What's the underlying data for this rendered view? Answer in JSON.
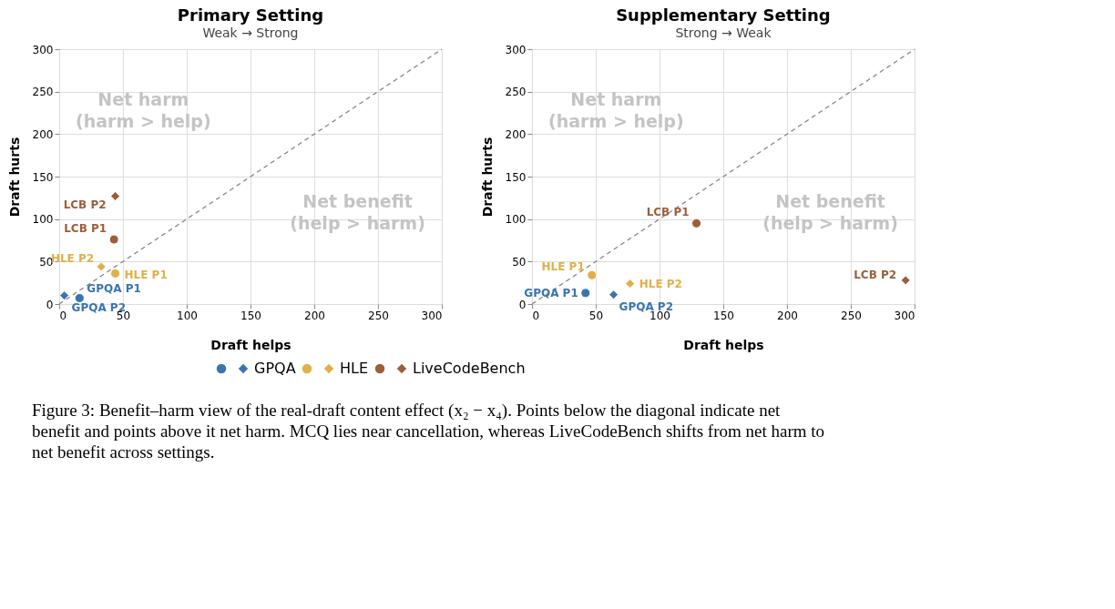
{
  "chart_data": [
    {
      "type": "scatter",
      "title": "Primary Setting",
      "subtitle": "Weak → Strong",
      "xlabel": "Draft helps",
      "ylabel": "Draft hurts",
      "xlim": [
        0,
        300
      ],
      "ylim": [
        0,
        300
      ],
      "xticks": [
        0,
        50,
        100,
        150,
        200,
        250,
        300
      ],
      "yticks": [
        0,
        50,
        100,
        150,
        200,
        250,
        300
      ],
      "grid": true,
      "legend": "bottom",
      "annotations": [
        "Net harm (harm > help)",
        "Net benefit (help > harm)",
        "Figure 3: Benefit–harm view of the real-draft content effect (x₂ − x₄). Points below the diagonal indicate net benefit and points above it net harm. MCQ lies near cancellation, whereas LiveCodeBench shifts from net harm to net benefit across settings."
      ],
      "series": [
        {
          "color": "#3b75af",
          "marker": "circle",
          "x": [
            16
          ],
          "values": [
            7
          ],
          "value_labels": [
            "GPQA P1"
          ]
        },
        {
          "name": "GPQA",
          "color": "#3b75af",
          "marker": "diamond",
          "x": [
            4
          ],
          "values": [
            10
          ],
          "value_labels": [
            "GPQA P2"
          ]
        },
        {
          "color": "#e0b04a",
          "marker": "circle",
          "x": [
            44
          ],
          "values": [
            36
          ],
          "value_labels": [
            "HLE P1"
          ]
        },
        {
          "name": "HLE",
          "color": "#e0b04a",
          "marker": "diamond",
          "x": [
            33
          ],
          "values": [
            44
          ],
          "value_labels": [
            "HLE P2"
          ]
        },
        {
          "color": "#9c5f3b",
          "marker": "circle",
          "x": [
            43
          ],
          "values": [
            76
          ],
          "value_labels": [
            "LCB P1"
          ]
        },
        {
          "name": "LiveCodeBench",
          "color": "#9c5f3b",
          "marker": "diamond",
          "x": [
            44
          ],
          "values": [
            127
          ],
          "value_labels": [
            "LCB P2"
          ]
        },
        {
          "type": "line",
          "color": "#808080",
          "line_style": "dashed",
          "marker": "none",
          "x": [
            0,
            300
          ],
          "values": [
            0,
            300
          ]
        }
      ]
    },
    {
      "type": "scatter",
      "title": "Supplementary Setting",
      "subtitle": "Strong → Weak",
      "xlabel": "Draft helps",
      "ylabel": "Draft hurts",
      "xlim": [
        0,
        300
      ],
      "ylim": [
        0,
        300
      ],
      "xticks": [
        0,
        50,
        100,
        150,
        200,
        250,
        300
      ],
      "yticks": [
        0,
        50,
        100,
        150,
        200,
        250,
        300
      ],
      "grid": true,
      "legend": "bottom",
      "annotations": [
        "Net harm (harm > help)",
        "Net benefit (help > harm)"
      ],
      "series": [
        {
          "color": "#3b75af",
          "marker": "circle",
          "x": [
            42
          ],
          "values": [
            13
          ],
          "value_labels": [
            "GPQA P1"
          ]
        },
        {
          "name": "GPQA",
          "color": "#3b75af",
          "marker": "diamond",
          "x": [
            64
          ],
          "values": [
            11
          ],
          "value_labels": [
            "GPQA P2"
          ]
        },
        {
          "color": "#e0b04a",
          "marker": "circle",
          "x": [
            47
          ],
          "values": [
            34
          ],
          "value_labels": [
            "HLE P1"
          ]
        },
        {
          "name": "HLE",
          "color": "#e0b04a",
          "marker": "diamond",
          "x": [
            77
          ],
          "values": [
            24
          ],
          "value_labels": [
            "HLE P2"
          ]
        },
        {
          "color": "#9c5f3b",
          "marker": "circle",
          "x": [
            129
          ],
          "values": [
            95
          ],
          "value_labels": [
            "LCB P1"
          ]
        },
        {
          "name": "LiveCodeBench",
          "color": "#9c5f3b",
          "marker": "diamond",
          "x": [
            293
          ],
          "values": [
            28
          ],
          "value_labels": [
            "LCB P2"
          ]
        },
        {
          "type": "line",
          "color": "#808080",
          "line_style": "dashed",
          "marker": "none",
          "x": [
            0,
            300
          ],
          "values": [
            0,
            300
          ]
        }
      ]
    }
  ]
}
